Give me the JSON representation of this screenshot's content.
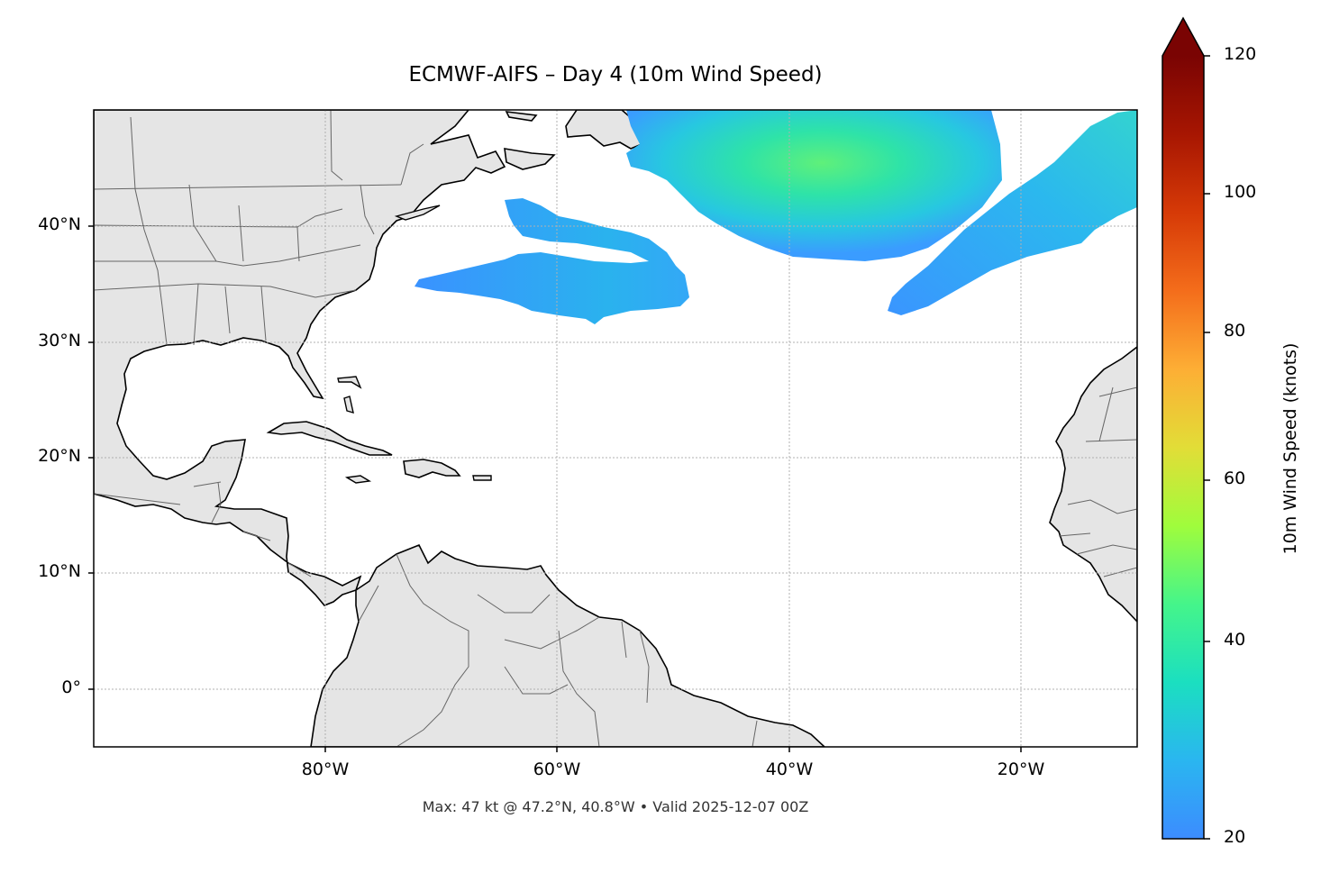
{
  "title": "ECMWF-AIFS – Day 4 (10m Wind Speed)",
  "footer": "Max: 47 kt @ 47.2°N, 40.8°W • Valid 2025-12-07 00Z",
  "map": {
    "projection": "PlateCarree",
    "lon_range": [
      -100,
      -10
    ],
    "lat_range": [
      -5,
      50
    ],
    "gridlines": true,
    "lat_ticks": [
      "40°N",
      "30°N",
      "20°N",
      "10°N",
      "0°"
    ],
    "lon_ticks": [
      "80°W",
      "60°W",
      "40°W",
      "20°W"
    ],
    "land_color": "#e5e5e5",
    "ocean_color": "#ffffff",
    "features": [
      "coastlines",
      "country borders",
      "US state borders"
    ],
    "wind_regions": [
      {
        "description": "North Atlantic jet band",
        "approx_lat": [
          37,
          50
        ],
        "approx_lon": [
          -55,
          -23
        ],
        "max_kt": 47
      },
      {
        "description": "Subtropical band",
        "approx_lat": [
          31.5,
          42
        ],
        "approx_lon": [
          -72,
          -49
        ]
      },
      {
        "description": "Eastern Atlantic band",
        "approx_lat": [
          32.5,
          50
        ],
        "approx_lon": [
          -31,
          -10
        ]
      }
    ]
  },
  "colorbar": {
    "label": "10m Wind Speed (knots)",
    "ticks": [
      "20",
      "40",
      "60",
      "80",
      "100",
      "120"
    ],
    "min": 20,
    "max": 120,
    "extend": "max",
    "colormap": "turbo"
  }
}
